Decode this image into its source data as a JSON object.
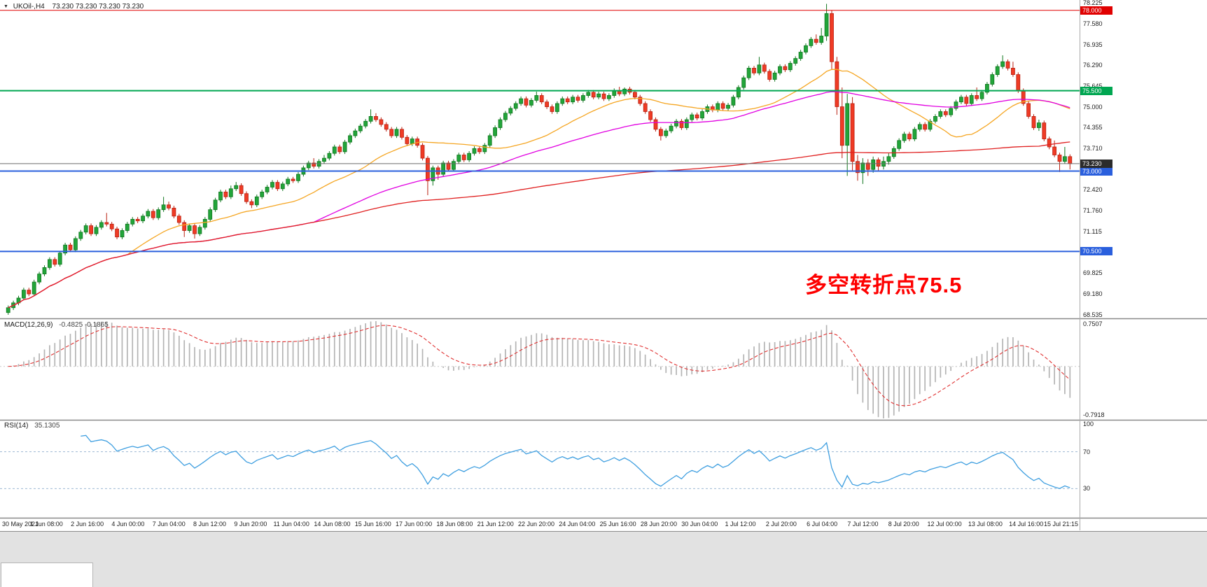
{
  "chart": {
    "title": {
      "symbol": "UKOil-,H4",
      "quotes": "73.230 73.230 73.230 73.230"
    },
    "macd": {
      "label": "MACD(12,26,9)",
      "values": "-0.4825 -0.1865"
    },
    "rsi": {
      "label": "RSI(14)",
      "value": "35.1305"
    },
    "annotation": {
      "text": "多空转折点75.5",
      "color": "#fe0000"
    }
  },
  "chart_data": {
    "type": "candlestick",
    "symbol": "UKOil-",
    "timeframe": "H4",
    "title": "UKOil-,H4 73.230 73.230 73.230 73.230",
    "price_range": [
      68.42,
      78.32
    ],
    "x_labels": [
      "30 May 2021",
      "1 Jun 08:00",
      "2 Jun 16:00",
      "4 Jun 00:00",
      "7 Jun 04:00",
      "8 Jun 12:00",
      "9 Jun 20:00",
      "11 Jun 04:00",
      "14 Jun 08:00",
      "15 Jun 16:00",
      "17 Jun 00:00",
      "18 Jun 08:00",
      "21 Jun 12:00",
      "22 Jun 20:00",
      "24 Jun 04:00",
      "25 Jun 16:00",
      "28 Jun 20:00",
      "30 Jun 04:00",
      "1 Jul 12:00",
      "2 Jul 20:00",
      "6 Jul 04:00",
      "7 Jul 12:00",
      "8 Jul 20:00",
      "12 Jul 00:00",
      "13 Jul 08:00",
      "14 Jul 16:00",
      "15 Jul 21:15"
    ],
    "y_axis": {
      "ticks": [
        "78.225",
        "77.580",
        "76.935",
        "76.290",
        "75.645",
        "75.000",
        "74.355",
        "73.710",
        "72.420",
        "71.760",
        "71.115",
        "69.825",
        "69.180",
        "68.535"
      ]
    },
    "levels": [
      {
        "price": 78.0,
        "label": "78.000",
        "color": "#e00000",
        "width": 1
      },
      {
        "price": 75.5,
        "label": "75.500",
        "color": "#00a651",
        "width": 2
      },
      {
        "price": 73.0,
        "label": "73.000",
        "color": "#2a5fdd",
        "width": 2
      },
      {
        "price": 70.5,
        "label": "70.500",
        "color": "#2a5fdd",
        "width": 2
      }
    ],
    "current_price": {
      "value": 73.23,
      "label": "73.230",
      "box_color": "#2b2b2b"
    },
    "moving_averages": [
      {
        "name": "fast",
        "period": 24,
        "color": "#f5a623"
      },
      {
        "name": "mid",
        "period": 60,
        "color": "#e100e1"
      },
      {
        "name": "slow",
        "period": 200,
        "color": "#e02020"
      }
    ],
    "indicators": [
      {
        "name": "MACD",
        "label": "MACD(12,26,9)",
        "values": "-0.4825 -0.1865",
        "params": [
          12,
          26,
          9
        ],
        "axis_labels": [
          "0.7507",
          "-0.7918"
        ],
        "histogram_color": "#b4b4b4",
        "signal_color": "#e03030"
      },
      {
        "name": "RSI",
        "label": "RSI(14)",
        "value": "35.1305",
        "period": 14,
        "axis_labels": [
          "100",
          "70",
          "30"
        ],
        "levels": [
          70,
          30
        ],
        "line_color": "#3f9fe0",
        "level_color": "#9db8d2"
      }
    ],
    "colors": {
      "up": "#22a53a",
      "up_border": "#11771f",
      "down": "#ef3b25",
      "down_border": "#b92112",
      "price_line": "#6a6a6a",
      "divider": "#8a8a8a"
    },
    "candles": [
      [
        68.6,
        68.82,
        68.53,
        68.75
      ],
      [
        68.75,
        68.97,
        68.68,
        68.9
      ],
      [
        68.9,
        69.12,
        68.83,
        69.05
      ],
      [
        69.05,
        69.37,
        68.98,
        69.3
      ],
      [
        69.3,
        69.37,
        69.11,
        69.18
      ],
      [
        69.18,
        69.62,
        69.11,
        69.55
      ],
      [
        69.55,
        69.87,
        69.48,
        69.8
      ],
      [
        69.8,
        70.07,
        69.73,
        70.0
      ],
      [
        70.0,
        70.32,
        69.93,
        70.25
      ],
      [
        70.25,
        70.32,
        70.03,
        70.1
      ],
      [
        70.1,
        70.52,
        70.03,
        70.45
      ],
      [
        70.45,
        70.77,
        70.38,
        70.7
      ],
      [
        70.7,
        70.77,
        70.48,
        70.55
      ],
      [
        70.55,
        70.97,
        70.48,
        70.9
      ],
      [
        70.9,
        71.17,
        70.83,
        71.1
      ],
      [
        71.1,
        71.37,
        71.03,
        71.3
      ],
      [
        71.3,
        71.37,
        70.98,
        71.05
      ],
      [
        71.05,
        71.32,
        70.98,
        71.25
      ],
      [
        71.25,
        71.47,
        71.18,
        71.4
      ],
      [
        71.4,
        71.7,
        71.28,
        71.35
      ],
      [
        71.35,
        71.42,
        71.13,
        71.2
      ],
      [
        71.2,
        71.27,
        70.88,
        70.95
      ],
      [
        70.95,
        71.22,
        70.88,
        71.15
      ],
      [
        71.15,
        71.42,
        71.08,
        71.35
      ],
      [
        71.35,
        71.57,
        71.28,
        71.5
      ],
      [
        71.5,
        71.57,
        71.38,
        71.45
      ],
      [
        71.45,
        71.67,
        71.38,
        71.6
      ],
      [
        71.6,
        71.82,
        71.53,
        71.75
      ],
      [
        71.75,
        71.82,
        71.48,
        71.55
      ],
      [
        71.55,
        71.87,
        71.48,
        71.8
      ],
      [
        71.8,
        72.2,
        71.73,
        71.95
      ],
      [
        71.95,
        72.05,
        71.78,
        71.85
      ],
      [
        71.85,
        71.92,
        71.53,
        71.6
      ],
      [
        71.6,
        71.67,
        71.33,
        71.4
      ],
      [
        71.4,
        71.47,
        70.95,
        71.15
      ],
      [
        71.15,
        71.37,
        71.08,
        71.3
      ],
      [
        71.3,
        71.37,
        70.9,
        71.05
      ],
      [
        71.05,
        71.32,
        70.98,
        71.25
      ],
      [
        71.25,
        71.57,
        71.18,
        71.5
      ],
      [
        71.5,
        71.87,
        71.43,
        71.8
      ],
      [
        71.8,
        72.17,
        71.73,
        72.1
      ],
      [
        72.1,
        72.42,
        72.03,
        72.35
      ],
      [
        72.35,
        72.42,
        72.13,
        72.2
      ],
      [
        72.2,
        72.55,
        72.13,
        72.45
      ],
      [
        72.45,
        72.66,
        72.38,
        72.55
      ],
      [
        72.55,
        72.62,
        72.23,
        72.3
      ],
      [
        72.3,
        72.37,
        71.98,
        72.05
      ],
      [
        72.05,
        72.12,
        71.85,
        71.95
      ],
      [
        71.95,
        72.27,
        71.88,
        72.2
      ],
      [
        72.2,
        72.42,
        72.13,
        72.35
      ],
      [
        72.35,
        72.57,
        72.28,
        72.5
      ],
      [
        72.5,
        72.72,
        72.43,
        72.65
      ],
      [
        72.65,
        72.72,
        72.38,
        72.45
      ],
      [
        72.45,
        72.67,
        72.38,
        72.6
      ],
      [
        72.6,
        72.82,
        72.53,
        72.75
      ],
      [
        72.75,
        72.82,
        72.63,
        72.7
      ],
      [
        72.7,
        72.97,
        72.63,
        72.9
      ],
      [
        72.9,
        73.17,
        72.83,
        73.1
      ],
      [
        73.1,
        73.32,
        73.03,
        73.25
      ],
      [
        73.25,
        73.4,
        73.08,
        73.15
      ],
      [
        73.15,
        73.37,
        73.08,
        73.3
      ],
      [
        73.3,
        73.5,
        73.23,
        73.4
      ],
      [
        73.4,
        73.62,
        73.33,
        73.55
      ],
      [
        73.55,
        73.82,
        73.48,
        73.75
      ],
      [
        73.75,
        73.82,
        73.53,
        73.6
      ],
      [
        73.6,
        73.97,
        73.53,
        73.9
      ],
      [
        73.9,
        74.17,
        73.83,
        74.1
      ],
      [
        74.1,
        74.32,
        74.03,
        74.25
      ],
      [
        74.25,
        74.47,
        74.18,
        74.4
      ],
      [
        74.4,
        74.62,
        74.33,
        74.55
      ],
      [
        74.55,
        74.92,
        74.48,
        74.7
      ],
      [
        74.7,
        74.8,
        74.53,
        74.6
      ],
      [
        74.6,
        74.67,
        74.38,
        74.45
      ],
      [
        74.45,
        74.52,
        74.23,
        74.3
      ],
      [
        74.3,
        74.37,
        74.03,
        74.1
      ],
      [
        74.1,
        74.37,
        74.03,
        74.3
      ],
      [
        74.3,
        74.37,
        73.98,
        74.05
      ],
      [
        74.05,
        74.12,
        73.78,
        73.85
      ],
      [
        73.85,
        74.07,
        73.78,
        74.0
      ],
      [
        74.0,
        74.07,
        73.73,
        73.8
      ],
      [
        73.8,
        73.87,
        73.33,
        73.4
      ],
      [
        73.4,
        73.47,
        72.25,
        72.7
      ],
      [
        72.7,
        73.17,
        72.55,
        73.1
      ],
      [
        73.1,
        73.17,
        72.73,
        72.9
      ],
      [
        72.9,
        73.32,
        72.83,
        73.25
      ],
      [
        73.25,
        73.32,
        72.98,
        73.05
      ],
      [
        73.05,
        73.37,
        72.98,
        73.3
      ],
      [
        73.3,
        73.57,
        73.23,
        73.5
      ],
      [
        73.5,
        73.57,
        73.28,
        73.35
      ],
      [
        73.35,
        73.62,
        73.28,
        73.55
      ],
      [
        73.55,
        73.77,
        73.48,
        73.7
      ],
      [
        73.7,
        73.77,
        73.53,
        73.6
      ],
      [
        73.6,
        73.87,
        73.53,
        73.8
      ],
      [
        73.8,
        74.17,
        73.73,
        74.1
      ],
      [
        74.1,
        74.42,
        74.03,
        74.35
      ],
      [
        74.35,
        74.67,
        74.28,
        74.6
      ],
      [
        74.6,
        74.87,
        74.53,
        74.8
      ],
      [
        74.8,
        75.02,
        74.73,
        74.95
      ],
      [
        74.95,
        75.17,
        74.88,
        75.1
      ],
      [
        75.1,
        75.32,
        75.03,
        75.25
      ],
      [
        75.25,
        75.32,
        74.98,
        75.05
      ],
      [
        75.05,
        75.27,
        74.98,
        75.2
      ],
      [
        75.2,
        75.47,
        75.13,
        75.35
      ],
      [
        75.35,
        75.42,
        75.08,
        75.15
      ],
      [
        75.15,
        75.22,
        74.93,
        75.0
      ],
      [
        75.0,
        75.07,
        74.78,
        74.85
      ],
      [
        74.85,
        75.17,
        74.78,
        75.1
      ],
      [
        75.1,
        75.32,
        75.03,
        75.25
      ],
      [
        75.25,
        75.32,
        75.08,
        75.15
      ],
      [
        75.15,
        75.37,
        75.08,
        75.3
      ],
      [
        75.3,
        75.37,
        75.13,
        75.2
      ],
      [
        75.2,
        75.42,
        75.13,
        75.35
      ],
      [
        75.35,
        75.52,
        75.28,
        75.45
      ],
      [
        75.45,
        75.52,
        75.23,
        75.3
      ],
      [
        75.3,
        75.47,
        75.23,
        75.4
      ],
      [
        75.4,
        75.47,
        75.18,
        75.25
      ],
      [
        75.25,
        75.42,
        75.18,
        75.35
      ],
      [
        75.35,
        75.57,
        75.28,
        75.5
      ],
      [
        75.5,
        75.62,
        75.33,
        75.4
      ],
      [
        75.4,
        75.6,
        75.33,
        75.55
      ],
      [
        75.55,
        75.62,
        75.38,
        75.45
      ],
      [
        75.45,
        75.52,
        75.23,
        75.3
      ],
      [
        75.3,
        75.37,
        75.03,
        75.1
      ],
      [
        75.1,
        75.17,
        74.78,
        74.85
      ],
      [
        74.85,
        74.92,
        74.53,
        74.6
      ],
      [
        74.6,
        74.67,
        74.23,
        74.3
      ],
      [
        74.3,
        74.37,
        73.95,
        74.1
      ],
      [
        74.1,
        74.32,
        74.03,
        74.25
      ],
      [
        74.25,
        74.47,
        74.18,
        74.4
      ],
      [
        74.4,
        74.62,
        74.33,
        74.55
      ],
      [
        74.55,
        74.62,
        74.28,
        74.35
      ],
      [
        74.35,
        74.67,
        74.28,
        74.6
      ],
      [
        74.6,
        74.82,
        74.53,
        74.75
      ],
      [
        74.75,
        74.82,
        74.58,
        74.65
      ],
      [
        74.65,
        74.92,
        74.58,
        74.85
      ],
      [
        74.85,
        75.07,
        74.78,
        75.0
      ],
      [
        75.0,
        75.07,
        74.83,
        74.9
      ],
      [
        74.9,
        75.17,
        74.83,
        75.1
      ],
      [
        75.1,
        75.17,
        74.88,
        74.95
      ],
      [
        74.95,
        75.12,
        74.88,
        75.05
      ],
      [
        75.05,
        75.37,
        74.98,
        75.3
      ],
      [
        75.3,
        75.67,
        75.23,
        75.6
      ],
      [
        75.6,
        75.97,
        75.53,
        75.9
      ],
      [
        75.9,
        76.27,
        75.83,
        76.2
      ],
      [
        76.2,
        76.27,
        75.98,
        76.05
      ],
      [
        76.05,
        76.55,
        75.98,
        76.3
      ],
      [
        76.3,
        76.37,
        76.03,
        76.1
      ],
      [
        76.1,
        76.17,
        75.78,
        75.85
      ],
      [
        75.85,
        76.12,
        75.78,
        76.05
      ],
      [
        76.05,
        76.32,
        75.98,
        76.25
      ],
      [
        76.25,
        76.32,
        76.08,
        76.15
      ],
      [
        76.15,
        76.42,
        76.08,
        76.35
      ],
      [
        76.35,
        76.57,
        76.28,
        76.5
      ],
      [
        76.5,
        76.77,
        76.43,
        76.7
      ],
      [
        76.7,
        76.97,
        76.63,
        76.9
      ],
      [
        76.9,
        77.17,
        76.83,
        77.1
      ],
      [
        77.1,
        77.25,
        76.93,
        77.0
      ],
      [
        77.0,
        77.45,
        76.93,
        77.2
      ],
      [
        77.2,
        78.2,
        77.05,
        77.9
      ],
      [
        77.9,
        78.0,
        76.15,
        76.4
      ],
      [
        76.4,
        76.55,
        74.75,
        75.0
      ],
      [
        75.0,
        75.6,
        73.4,
        73.8
      ],
      [
        73.8,
        75.4,
        72.85,
        75.1
      ],
      [
        75.1,
        75.3,
        73.0,
        73.3
      ],
      [
        73.3,
        73.5,
        72.7,
        72.95
      ],
      [
        72.95,
        73.4,
        72.6,
        73.25
      ],
      [
        73.25,
        73.37,
        72.85,
        73.05
      ],
      [
        73.05,
        73.45,
        72.95,
        73.35
      ],
      [
        73.35,
        73.42,
        73.0,
        73.15
      ],
      [
        73.15,
        73.45,
        73.05,
        73.3
      ],
      [
        73.3,
        73.55,
        73.2,
        73.45
      ],
      [
        73.45,
        73.77,
        73.38,
        73.7
      ],
      [
        73.7,
        74.02,
        73.63,
        73.95
      ],
      [
        73.95,
        74.22,
        73.88,
        74.15
      ],
      [
        74.15,
        74.22,
        73.93,
        74.0
      ],
      [
        74.0,
        74.37,
        73.93,
        74.3
      ],
      [
        74.3,
        74.52,
        74.23,
        74.45
      ],
      [
        74.45,
        74.52,
        74.23,
        74.3
      ],
      [
        74.3,
        74.62,
        74.23,
        74.55
      ],
      [
        74.55,
        74.77,
        74.48,
        74.7
      ],
      [
        74.7,
        74.92,
        74.63,
        74.85
      ],
      [
        74.85,
        74.92,
        74.68,
        74.75
      ],
      [
        74.75,
        75.02,
        74.68,
        74.95
      ],
      [
        74.95,
        75.22,
        74.88,
        75.15
      ],
      [
        75.15,
        75.37,
        75.08,
        75.3
      ],
      [
        75.3,
        75.37,
        75.03,
        75.1
      ],
      [
        75.1,
        75.42,
        75.03,
        75.35
      ],
      [
        75.35,
        75.6,
        75.18,
        75.25
      ],
      [
        75.25,
        75.52,
        75.18,
        75.45
      ],
      [
        75.45,
        75.77,
        75.38,
        75.7
      ],
      [
        75.7,
        76.07,
        75.63,
        76.0
      ],
      [
        76.0,
        76.32,
        75.93,
        76.25
      ],
      [
        76.25,
        76.6,
        76.18,
        76.4
      ],
      [
        76.4,
        76.47,
        76.13,
        76.2
      ],
      [
        76.2,
        76.4,
        75.93,
        76.0
      ],
      [
        76.0,
        76.07,
        75.43,
        75.5
      ],
      [
        75.5,
        75.57,
        75.03,
        75.1
      ],
      [
        75.1,
        75.17,
        74.63,
        74.7
      ],
      [
        74.7,
        74.77,
        74.28,
        74.35
      ],
      [
        74.35,
        74.6,
        74.25,
        74.5
      ],
      [
        74.5,
        74.57,
        73.93,
        74.0
      ],
      [
        74.0,
        74.07,
        73.68,
        73.75
      ],
      [
        73.75,
        73.95,
        73.43,
        73.5
      ],
      [
        73.5,
        73.57,
        72.97,
        73.3
      ],
      [
        73.3,
        73.75,
        73.23,
        73.45
      ],
      [
        73.45,
        73.52,
        73.05,
        73.23
      ]
    ]
  }
}
